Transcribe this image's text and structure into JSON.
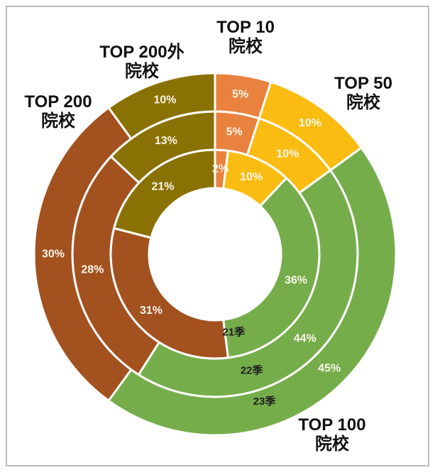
{
  "chart_data": {
    "type": "pie",
    "subtype": "sunburst-multi-ring-donut",
    "title": "",
    "unit": "%",
    "start_angle_deg": 0,
    "direction": "clockwise",
    "legend_position": "around-chart",
    "grid": false,
    "categories": [
      {
        "name": "TOP 10",
        "name2": "院校",
        "color": "#E8823E"
      },
      {
        "name": "TOP 50",
        "name2": "院校",
        "color": "#FBBC11"
      },
      {
        "name": "TOP 100",
        "name2": "院校",
        "color": "#76AD4B"
      },
      {
        "name": "TOP 200",
        "name2": "院校",
        "color": "#A2511F"
      },
      {
        "name": "TOP 200外",
        "name2": "院校",
        "color": "#8A7103"
      }
    ],
    "rings": [
      {
        "label": "21季",
        "values": [
          2,
          10,
          36,
          31,
          21
        ]
      },
      {
        "label": "22季",
        "values": [
          5,
          10,
          44,
          28,
          13
        ]
      },
      {
        "label": "23季",
        "values": [
          5,
          10,
          45,
          30,
          10
        ]
      }
    ],
    "value_label_suffix": "%",
    "value_label_color": "#FCF6EA",
    "ring_label_color": "#1E1E1E",
    "category_label_color": "#111111",
    "separator_color": "#FFFFFF",
    "frame_border_color": "#bcbcbc",
    "background_color": "#ffffff"
  }
}
